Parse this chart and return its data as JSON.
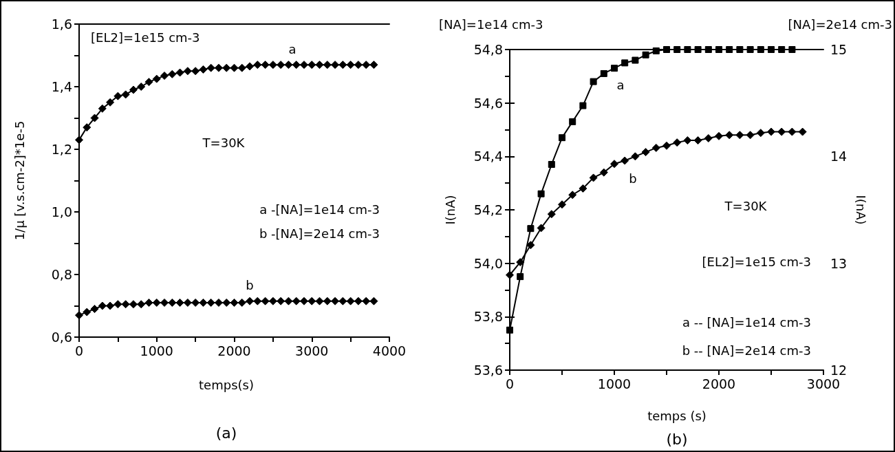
{
  "chart_data": [
    {
      "type": "line",
      "title": "(a)",
      "xlabel": "temps(s)",
      "ylabel": "1/μ [v.s.cm-2]*1e-5",
      "annotations": [
        "[EL2]=1e15 cm-3",
        "T=30K",
        "a -[NA]=1e14 cm-3",
        "b -[NA]=2e14 cm-3",
        "a",
        "b"
      ],
      "x": [
        0,
        100,
        200,
        300,
        400,
        500,
        600,
        700,
        800,
        900,
        1000,
        1100,
        1200,
        1300,
        1400,
        1500,
        1600,
        1700,
        1800,
        1900,
        2000,
        2100,
        2200,
        2300,
        2400,
        2500,
        2600,
        2700,
        2800,
        2900,
        3000,
        3100,
        3200,
        3300,
        3400,
        3500,
        3600,
        3700,
        3800
      ],
      "series": [
        {
          "color": "#000000",
          "values": [
            1.23,
            1.27,
            1.3,
            1.33,
            1.35,
            1.37,
            1.375,
            1.39,
            1.4,
            1.415,
            1.425,
            1.435,
            1.44,
            1.445,
            1.45,
            1.45,
            1.455,
            1.46,
            1.46,
            1.46,
            1.46,
            1.46,
            1.465,
            1.47,
            1.47,
            1.47,
            1.47,
            1.47,
            1.47,
            1.47,
            1.47,
            1.47,
            1.47,
            1.47,
            1.47,
            1.47,
            1.47,
            1.47,
            1.47
          ]
        },
        {
          "color": "#000000",
          "values": [
            0.67,
            0.68,
            0.69,
            0.7,
            0.7,
            0.705,
            0.705,
            0.705,
            0.705,
            0.71,
            0.71,
            0.71,
            0.71,
            0.71,
            0.71,
            0.71,
            0.71,
            0.71,
            0.71,
            0.71,
            0.71,
            0.71,
            0.715,
            0.715,
            0.715,
            0.715,
            0.715,
            0.715,
            0.715,
            0.715,
            0.715,
            0.715,
            0.715,
            0.715,
            0.715,
            0.715,
            0.715,
            0.715,
            0.715
          ]
        }
      ],
      "xlim": [
        0,
        4000
      ],
      "xticks": [
        0,
        {
          "value": 500,
          "label": null
        },
        1000,
        {
          "value": 1500,
          "label": null
        },
        2000,
        {
          "value": 2500,
          "label": null
        },
        3000,
        {
          "value": 3500,
          "label": null
        },
        4000
      ],
      "ylim": [
        0.6,
        1.6
      ],
      "yticks": [
        {
          "value": 0.6,
          "label": "0,6"
        },
        {
          "value": 0.7,
          "label": null
        },
        {
          "value": 0.8,
          "label": "0,8"
        },
        {
          "value": 0.9,
          "label": null
        },
        {
          "value": 1.0,
          "label": "1,0"
        },
        {
          "value": 1.1,
          "label": null
        },
        {
          "value": 1.2,
          "label": "1,2"
        },
        {
          "value": 1.3,
          "label": null
        },
        {
          "value": 1.4,
          "label": "1,4"
        },
        {
          "value": 1.5,
          "label": null
        },
        {
          "value": 1.6,
          "label": "1,6"
        }
      ],
      "grid": false,
      "marker": "diamond",
      "line_style": "solid"
    },
    {
      "type": "line",
      "title": "(b)",
      "xlabel": "temps (s)",
      "ylabel": "I(nA)",
      "y2label": "I(nA)",
      "annotations": [
        "[NA]=1e14 cm-3",
        "[NA]=2e14 cm-3",
        "T=30K",
        "[EL2]=1e15 cm-3",
        "a -- [NA]=1e14 cm-3",
        "b -- [NA]=2e14 cm-3",
        "a",
        "b"
      ],
      "series": [
        {
          "color": "#000000",
          "marker": "square",
          "x": [
            0,
            100,
            200,
            300,
            400,
            500,
            600,
            700,
            800,
            900,
            1000,
            1100,
            1200,
            1300,
            1400,
            1500,
            1600,
            1700,
            1800,
            1900,
            2000,
            2100,
            2200,
            2300,
            2400,
            2500,
            2600,
            2700
          ],
          "values": [
            53.75,
            53.95,
            54.13,
            54.26,
            54.37,
            54.47,
            54.53,
            54.59,
            54.68,
            54.71,
            54.73,
            54.75,
            54.76,
            54.78,
            54.795,
            54.8,
            54.8,
            54.8,
            54.8,
            54.8,
            54.8,
            54.8,
            54.8,
            54.8,
            54.8,
            54.8,
            54.8,
            54.8
          ]
        },
        {
          "color": "#000000",
          "marker": "diamond",
          "axis": "y2",
          "x": [
            0,
            100,
            200,
            300,
            400,
            500,
            600,
            700,
            800,
            900,
            1000,
            1100,
            1200,
            1300,
            1400,
            1500,
            1600,
            1700,
            1800,
            1900,
            2000,
            2100,
            2200,
            2300,
            2400,
            2500,
            2600,
            2700,
            2800
          ],
          "values": [
            12.89,
            13.01,
            13.17,
            13.33,
            13.46,
            13.55,
            13.64,
            13.7,
            13.8,
            13.85,
            13.93,
            13.96,
            14.0,
            14.04,
            14.08,
            14.1,
            14.13,
            14.15,
            14.15,
            14.17,
            14.19,
            14.2,
            14.2,
            14.2,
            14.22,
            14.23,
            14.23,
            14.23,
            14.23
          ]
        }
      ],
      "xlim": [
        0,
        3000
      ],
      "xticks": [
        0,
        {
          "value": 500,
          "label": null
        },
        1000,
        {
          "value": 1500,
          "label": null
        },
        2000,
        {
          "value": 2500,
          "label": null
        },
        3000
      ],
      "ylim": [
        53.6,
        54.8
      ],
      "yticks": [
        {
          "value": 53.6,
          "label": "53,6"
        },
        {
          "value": 53.7,
          "label": null
        },
        {
          "value": 53.8,
          "label": "53,8"
        },
        {
          "value": 53.9,
          "label": null
        },
        {
          "value": 54.0,
          "label": "54,0"
        },
        {
          "value": 54.1,
          "label": null
        },
        {
          "value": 54.2,
          "label": "54,2"
        },
        {
          "value": 54.3,
          "label": null
        },
        {
          "value": 54.4,
          "label": "54,4"
        },
        {
          "value": 54.5,
          "label": null
        },
        {
          "value": 54.6,
          "label": "54,6"
        },
        {
          "value": 54.7,
          "label": null
        },
        {
          "value": 54.8,
          "label": "54,8"
        }
      ],
      "y2lim": [
        12,
        15
      ],
      "y2ticks": [
        12,
        {
          "value": 12.5,
          "label": null
        },
        13,
        {
          "value": 13.5,
          "label": null
        },
        14,
        {
          "value": 14.5,
          "label": null
        },
        15
      ],
      "grid": false,
      "line_style": "solid"
    }
  ]
}
